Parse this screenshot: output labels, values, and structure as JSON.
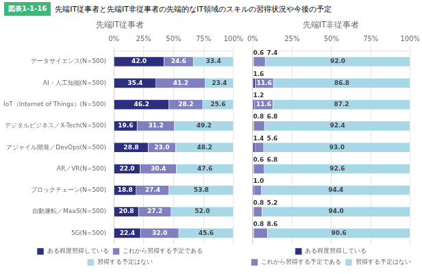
{
  "title": "先端IT従事者と先端IT非従事者の先端的なIT領域のスキルの習得状況や今後の予定",
  "annotations": [
    {
      "text": "図表1-1-16",
      "color": "#3db87a"
    }
  ],
  "chart_data": [
    {
      "type": "bar",
      "orientation": "horizontal",
      "stacked": true,
      "title": "先端IT従事者",
      "categories": [
        "データサイエンス(N=500)",
        "AI・人工知能(N=500)",
        "IoT（Internet of Things）(N=500)",
        "デジタルビジネス／X-Tech(N=500)",
        "アジャイル開発／DevOps(N=500)",
        "AR／VR(N=500)",
        "ブロックチェーン(N=500)",
        "自動運転／MaaS(N=500)",
        "5G(N=500)"
      ],
      "series": [
        {
          "name": "ある程度習得している",
          "color": "#2b2f7e",
          "values": [
            42.0,
            35.4,
            46.2,
            19.6,
            28.8,
            22.0,
            18.8,
            20.8,
            22.4
          ],
          "value_labels": [
            "42.0",
            "35.4",
            "46.2",
            "19.6",
            "28.8",
            "22.0",
            "18.8",
            "20.8",
            "22.4"
          ]
        },
        {
          "name": "これから習得する予定である",
          "color": "#8080c0",
          "values": [
            24.6,
            41.2,
            28.2,
            31.2,
            23.0,
            30.4,
            27.4,
            27.2,
            32.0
          ],
          "value_labels": [
            "24.6",
            "41.2",
            "28.2",
            "31.2",
            "23.0",
            "30.4",
            "27.4",
            "27.2",
            "32.0"
          ]
        },
        {
          "name": "習得する予定はない",
          "color": "#a8d8e8",
          "values": [
            33.4,
            23.4,
            25.6,
            49.2,
            48.2,
            47.6,
            53.8,
            52.0,
            45.6
          ],
          "value_labels": [
            "33.4",
            "23.4",
            "25.6",
            "49.2",
            "48.2",
            "47.6",
            "53.8",
            "52.0",
            "45.6"
          ]
        }
      ],
      "xlim": [
        0,
        100
      ],
      "xticks": [
        {
          "value": 0,
          "label": "0%"
        },
        {
          "value": 25,
          "label": "25%"
        },
        {
          "value": 50,
          "label": "50%"
        },
        {
          "value": 75,
          "label": "75%"
        },
        {
          "value": 100,
          "label": "100%"
        }
      ],
      "grid": true,
      "data_labels": true,
      "legend": "bottom"
    },
    {
      "type": "bar",
      "orientation": "horizontal",
      "stacked": true,
      "title": "先端IT非従事者",
      "categories": [
        "データサイエンス(N=500)",
        "AI・人工知能(N=500)",
        "IoT（Internet of Things）(N=500)",
        "デジタルビジネス／X-Tech(N=500)",
        "アジャイル開発／DevOps(N=500)",
        "AR／VR(N=500)",
        "ブロックチェーン(N=500)",
        "自動運転／MaaS(N=500)",
        "5G(N=500)"
      ],
      "series": [
        {
          "name": "ある程度習得している",
          "color": "#2b2f7e",
          "values": [
            0.6,
            1.6,
            1.2,
            0.8,
            1.4,
            0.6,
            1.0,
            0.8,
            0.8
          ],
          "value_labels": [
            "0.6",
            "1.6",
            "1.2",
            "0.8",
            "1.4",
            "0.6",
            "1.0",
            "0.8",
            "0.8"
          ]
        },
        {
          "name": "これから習得する予定である",
          "color": "#8080c0",
          "values": [
            7.4,
            11.6,
            11.6,
            6.8,
            5.6,
            6.8,
            4.6,
            5.2,
            8.6
          ],
          "value_labels": [
            "7.4",
            "11.6",
            "11.6",
            "6.8",
            "5.6",
            "6.8",
            null,
            "5.2",
            "8.6"
          ]
        },
        {
          "name": "習得する予定はない",
          "color": "#a8d8e8",
          "values": [
            92.0,
            86.8,
            87.2,
            92.4,
            93.0,
            92.6,
            94.4,
            94.0,
            90.6
          ],
          "value_labels": [
            "92.0",
            "86.8",
            "87.2",
            "92.4",
            "93.0",
            "92.6",
            "94.4",
            "94.0",
            "90.6"
          ]
        }
      ],
      "xlim": [
        0,
        100
      ],
      "xticks": [
        {
          "value": 0,
          "label": "0%"
        },
        {
          "value": 25,
          "label": "25%"
        },
        {
          "value": 50,
          "label": "50%"
        },
        {
          "value": 75,
          "label": "75%"
        },
        {
          "value": 100,
          "label": "100%"
        }
      ],
      "grid": true,
      "data_labels": true,
      "legend": "bottom",
      "tick_labels": "x"
    }
  ]
}
